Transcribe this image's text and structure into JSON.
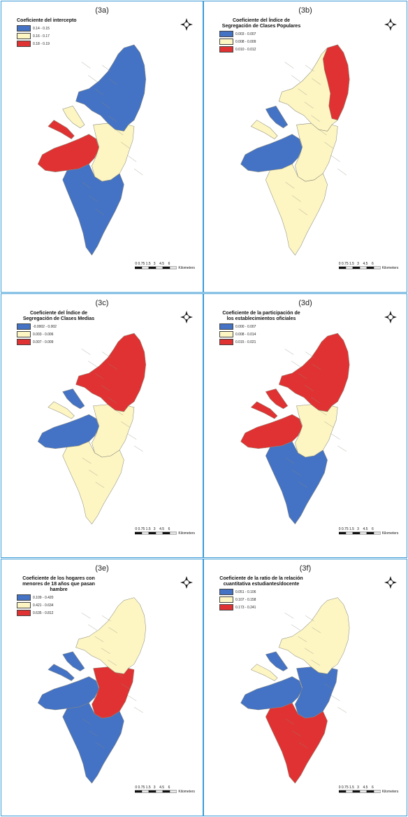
{
  "colors": {
    "blue": "#4472c4",
    "yellow": "#fdf6c3",
    "red": "#e03232",
    "outline": "#8a8a7a"
  },
  "panels": [
    {
      "id": "3a",
      "label": "(3a)",
      "legend_title": "Coeficiente del intercepto",
      "legend_items": [
        {
          "label": "0.14 - 0.15",
          "color": "blue"
        },
        {
          "label": "0.16 - 0.17",
          "color": "yellow"
        },
        {
          "label": "0.18 - 0.19",
          "color": "red"
        }
      ],
      "regions": {
        "north": "blue",
        "northwest_strip": "yellow",
        "west_strip": "red",
        "west_big": "red",
        "center": "yellow",
        "south": "blue"
      },
      "scale_text": "0 0.75 1.5   3    4.5    6",
      "scale_unit": "Kilometers"
    },
    {
      "id": "3b",
      "label": "(3b)",
      "legend_title": "Coeficiente del Índice de Segregación de Clases Populares",
      "legend_items": [
        {
          "label": "0.003 - 0.007",
          "color": "blue"
        },
        {
          "label": "0.008 - 0.009",
          "color": "yellow"
        },
        {
          "label": "0.010 - 0.012",
          "color": "red"
        }
      ],
      "regions": {
        "north": "yellow",
        "northeast": "red",
        "northwest_strip": "blue",
        "west_strip": "yellow",
        "west_big": "blue",
        "center": "yellow",
        "south": "yellow"
      },
      "scale_text": "0 0.75 1.5   3    4.5    6",
      "scale_unit": "Kilometers"
    },
    {
      "id": "3c",
      "label": "(3c)",
      "legend_title": "Coeficiente del Índice de Segregación de Clases Medias",
      "legend_items": [
        {
          "label": "-0.0002 - 0.002",
          "color": "blue"
        },
        {
          "label": "0.003 - 0.006",
          "color": "yellow"
        },
        {
          "label": "0.007 - 0.009",
          "color": "red"
        }
      ],
      "regions": {
        "north": "red",
        "northwest_strip": "blue",
        "west_strip": "yellow",
        "west_big": "blue",
        "center": "yellow",
        "south": "yellow"
      },
      "scale_text": "0 0.75 1.5   3    4.5    6",
      "scale_unit": "Kilometers"
    },
    {
      "id": "3d",
      "label": "(3d)",
      "legend_title": "Coeficiente de la participación de los establecimientos oficiales",
      "legend_items": [
        {
          "label": "0.000 - 0.007",
          "color": "blue"
        },
        {
          "label": "0.008 - 0.014",
          "color": "yellow"
        },
        {
          "label": "0.015 - 0.021",
          "color": "red"
        }
      ],
      "regions": {
        "north": "red",
        "northwest_strip": "red",
        "west_strip": "red",
        "west_big": "red",
        "center": "yellow",
        "south": "blue"
      },
      "scale_text": "0 0.75 1.5   3    4.5    6",
      "scale_unit": "Kilometers"
    },
    {
      "id": "3e",
      "label": "(3e)",
      "legend_title": "Coeficiente de los hogares con menores de 18 años que pasan hambre",
      "legend_items": [
        {
          "label": "0.109 - 0.420",
          "color": "blue"
        },
        {
          "label": "0.421 - 0.634",
          "color": "yellow"
        },
        {
          "label": "0.635 - 0.812",
          "color": "red"
        }
      ],
      "regions": {
        "north": "yellow",
        "northwest_strip": "blue",
        "west_strip": "blue",
        "west_big": "blue",
        "center": "red",
        "south": "blue"
      },
      "scale_text": "0 0.75 1.5   3    4.5    6",
      "scale_unit": "Kilometers"
    },
    {
      "id": "3f",
      "label": "(3f)",
      "legend_title": "Coeficiente de la ratio de la relación cuantitativa estudiantes/docente",
      "legend_items": [
        {
          "label": "0.051 - 0.106",
          "color": "blue"
        },
        {
          "label": "0.107 - 0.158",
          "color": "yellow"
        },
        {
          "label": "0.173 - 0.241",
          "color": "red"
        }
      ],
      "regions": {
        "north": "yellow",
        "northwest_strip": "blue",
        "west_strip": "yellow",
        "west_big": "blue",
        "center": "blue",
        "south": "red"
      },
      "scale_text": "0 0.75 1.5   3    4.5    6",
      "scale_unit": "Kilometers"
    }
  ]
}
